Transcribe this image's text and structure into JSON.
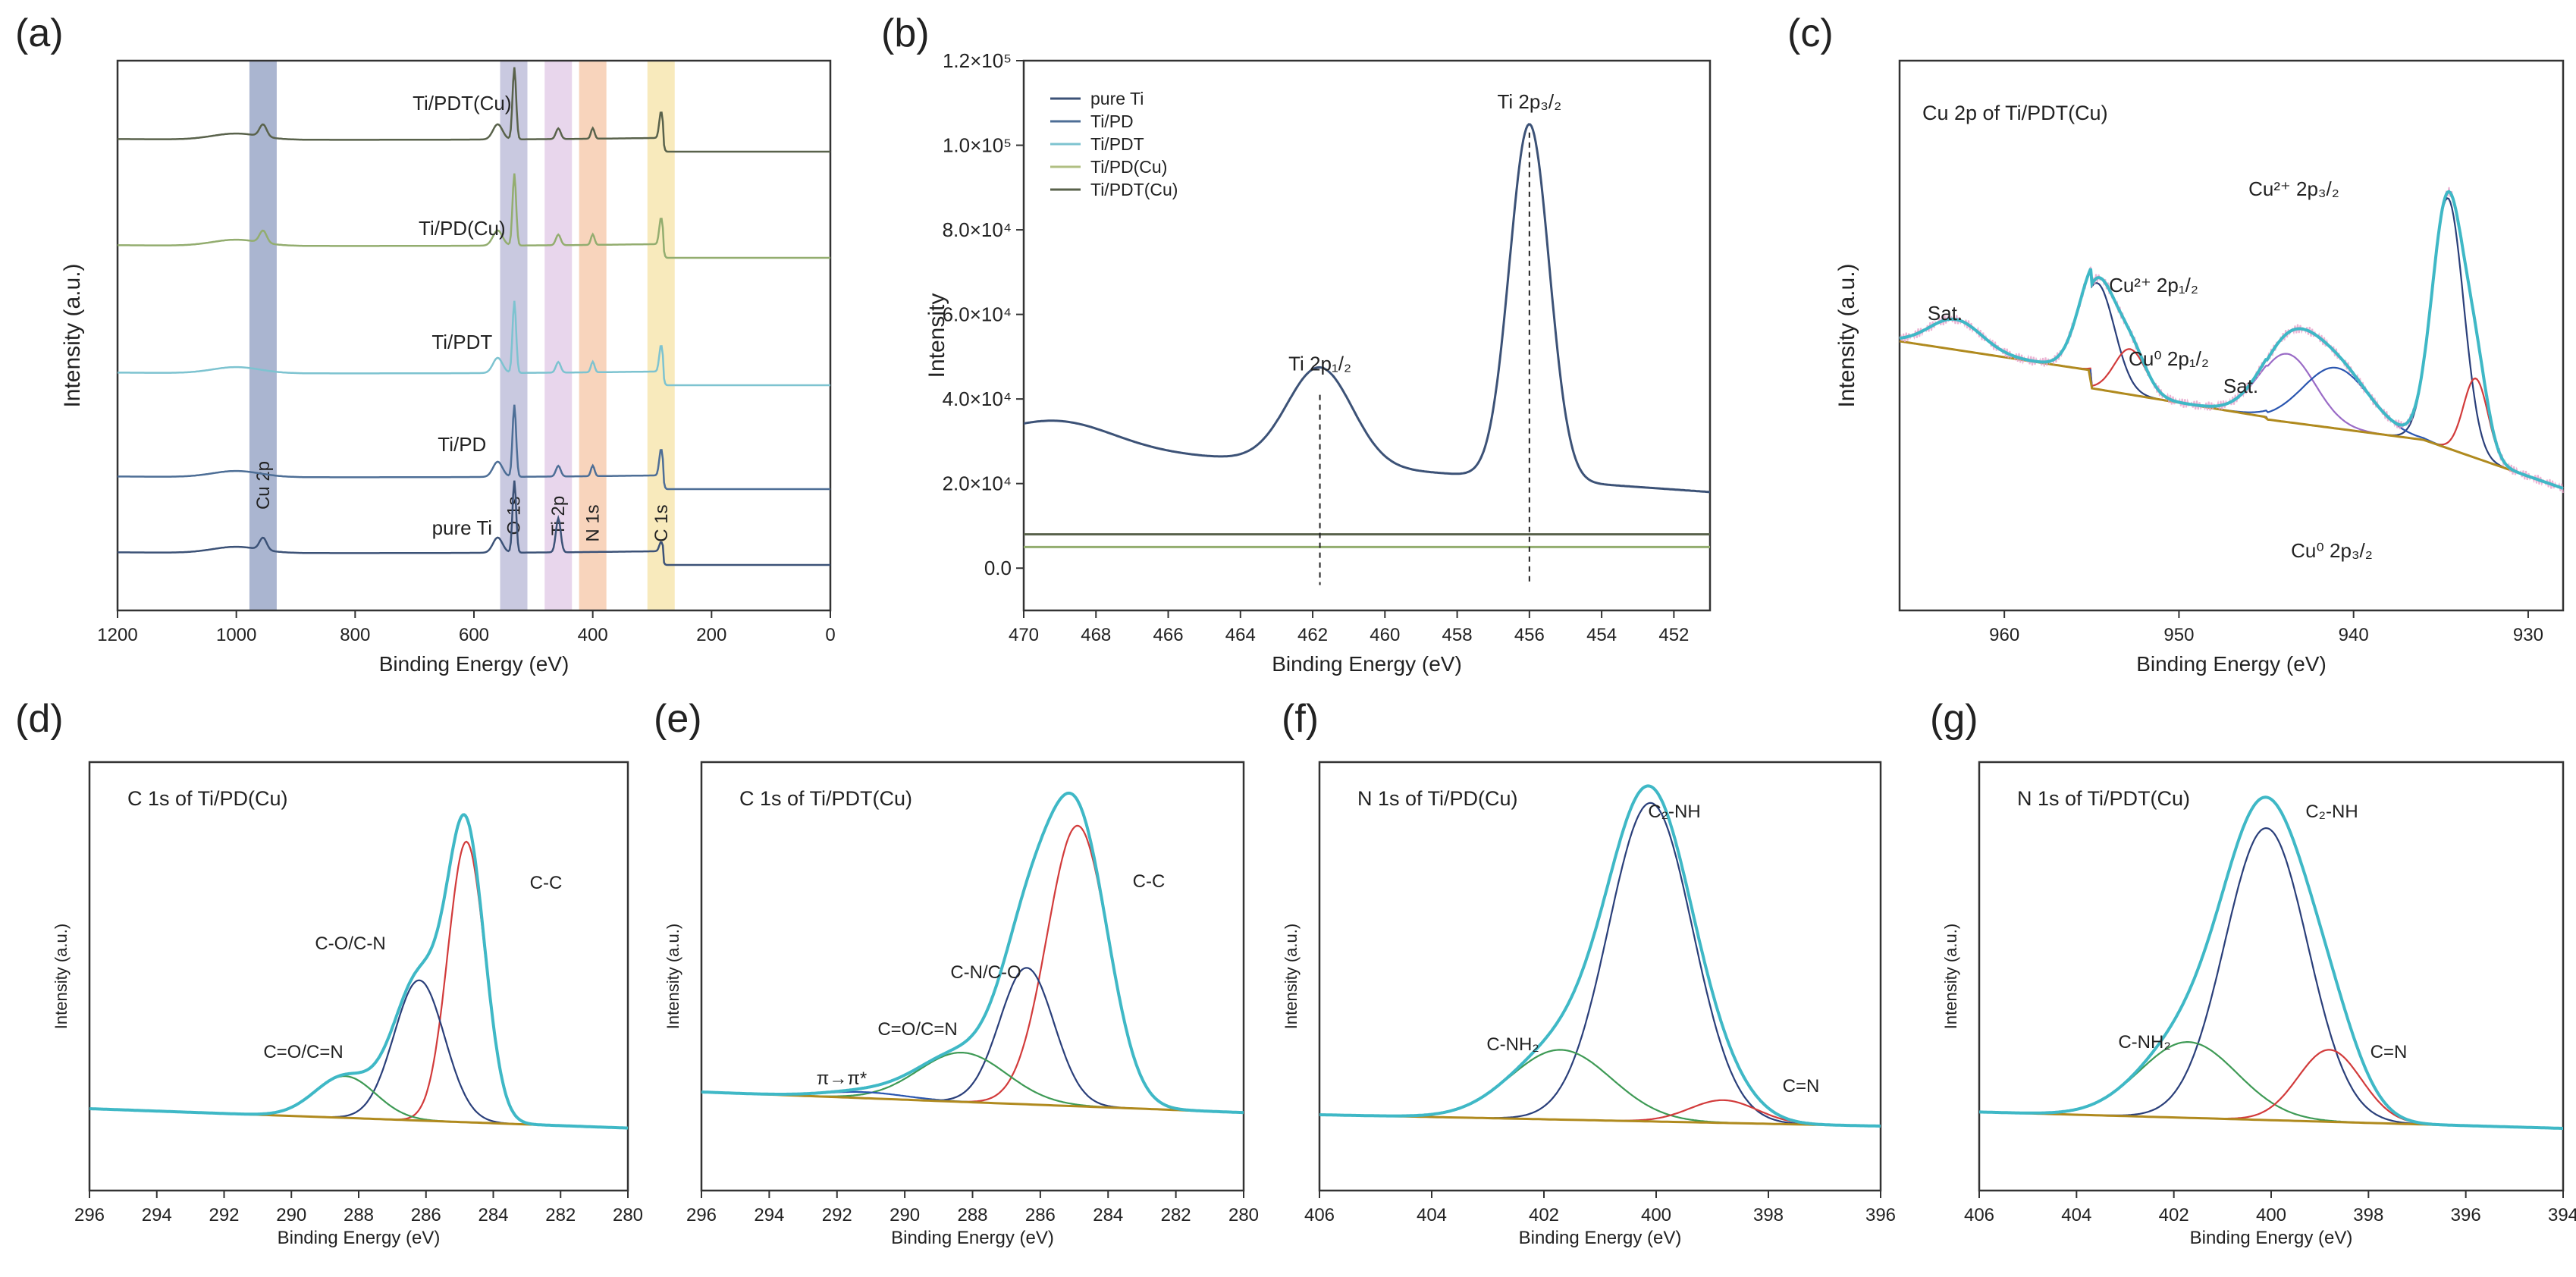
{
  "chart_data": [
    {
      "id": "a",
      "panel_label": "(a)",
      "type": "line",
      "xlabel": "Binding Energy (eV)",
      "ylabel": "Intensity (a.u.)",
      "xlim": [
        1200,
        0
      ],
      "xticks": [
        1200,
        1000,
        800,
        600,
        400,
        200,
        0
      ],
      "bands": [
        {
          "x": 955,
          "label": "Cu 2p",
          "color": "#8e9cc0"
        },
        {
          "x": 533,
          "label": "O 1s",
          "color": "#b7b7d6"
        },
        {
          "x": 458,
          "label": "Ti 2p",
          "color": "#e0c8e6"
        },
        {
          "x": 400,
          "label": "N 1s",
          "color": "#f6c6a6"
        },
        {
          "x": 285,
          "label": "C 1s",
          "color": "#f5e3a6"
        }
      ],
      "series": [
        {
          "name": "pure Ti",
          "color": "#3c5277"
        },
        {
          "name": "Ti/PD",
          "color": "#4d6e96"
        },
        {
          "name": "Ti/PDT",
          "color": "#7dc3d0"
        },
        {
          "name": "Ti/PD(Cu)",
          "color": "#93ad6f"
        },
        {
          "name": "Ti/PDT(Cu)",
          "color": "#59624b"
        }
      ]
    },
    {
      "id": "b",
      "panel_label": "(b)",
      "type": "line",
      "xlabel": "Binding Energy (eV)",
      "ylabel": "Intensity",
      "xlim": [
        470,
        451
      ],
      "ylim": [
        -10000,
        120000
      ],
      "xticks": [
        470,
        468,
        466,
        464,
        462,
        460,
        458,
        456,
        454,
        452
      ],
      "yticks": [
        {
          "v": 0,
          "label": "0.0"
        },
        {
          "v": 20000,
          "label": "2.0×10⁴"
        },
        {
          "v": 40000,
          "label": "4.0×10⁴"
        },
        {
          "v": 60000,
          "label": "6.0×10⁴"
        },
        {
          "v": 80000,
          "label": "8.0×10⁴"
        },
        {
          "v": 100000,
          "label": "1.0×10⁵"
        },
        {
          "v": 120000,
          "label": "1.2×10⁵"
        }
      ],
      "legend": [
        "pure Ti",
        "Ti/PD",
        "Ti/PDT",
        "Ti/PD(Cu)",
        "Ti/PDT(Cu)"
      ],
      "legend_colors": [
        "#3c5277",
        "#4d6e96",
        "#7dc3d0",
        "#b0bf82",
        "#59624b"
      ],
      "peaks": [
        {
          "x": 461.8,
          "y": 41000,
          "label": "Ti 2p₁/₂"
        },
        {
          "x": 456.0,
          "y": 103000,
          "label": "Ti 2p₃/₂"
        }
      ],
      "flat_lines": [
        {
          "y": 8000,
          "color": "#59624b"
        },
        {
          "y": 5000,
          "color": "#93ad6f"
        }
      ]
    },
    {
      "id": "c",
      "panel_label": "(c)",
      "type": "line",
      "title": "Cu 2p of Ti/PDT(Cu)",
      "xlabel": "Binding Energy (eV)",
      "ylabel": "Intensity (a.u.)",
      "xlim": [
        966,
        928
      ],
      "xticks": [
        960,
        950,
        940,
        930
      ],
      "annotations": [
        "Cu²⁺ 2p₃/₂",
        "Cu²⁺ 2p₁/₂",
        "Cu⁰ 2p₁/₂",
        "Cu⁰ 2p₃/₂",
        "Sat.",
        "Sat."
      ]
    },
    {
      "id": "d",
      "panel_label": "(d)",
      "type": "line",
      "title": "C 1s of Ti/PD(Cu)",
      "xlabel": "Binding Energy (eV)",
      "ylabel": "Intensity (a.u.)",
      "xlim": [
        296,
        280
      ],
      "xticks": [
        296,
        294,
        292,
        290,
        288,
        286,
        284,
        282,
        280
      ],
      "components": [
        {
          "label": "C-C",
          "center": 284.8
        },
        {
          "label": "C-O/C-N",
          "center": 286.2
        },
        {
          "label": "C=O/C=N",
          "center": 288.4
        }
      ]
    },
    {
      "id": "e",
      "panel_label": "(e)",
      "type": "line",
      "title": "C 1s of Ti/PDT(Cu)",
      "xlabel": "Binding Energy (eV)",
      "ylabel": "Intensity (a.u.)",
      "xlim": [
        296,
        280
      ],
      "xticks": [
        296,
        294,
        292,
        290,
        288,
        286,
        284,
        282,
        280
      ],
      "components": [
        {
          "label": "C-C",
          "center": 284.9
        },
        {
          "label": "C-N/C-O",
          "center": 286.4
        },
        {
          "label": "C=O/C=N",
          "center": 288.3
        },
        {
          "label": "π→π*",
          "center": 291.2
        }
      ]
    },
    {
      "id": "f",
      "panel_label": "(f)",
      "type": "line",
      "title": "N 1s of Ti/PD(Cu)",
      "xlabel": "Binding Energy (eV)",
      "ylabel": "Intensity (a.u.)",
      "xlim": [
        406,
        396
      ],
      "xticks": [
        406,
        404,
        402,
        400,
        398,
        396
      ],
      "components": [
        {
          "label": "C₂-NH",
          "center": 400.1
        },
        {
          "label": "C-NH₂",
          "center": 401.7
        },
        {
          "label": "C=N",
          "center": 398.8
        }
      ]
    },
    {
      "id": "g",
      "panel_label": "(g)",
      "type": "line",
      "title": "N 1s of Ti/PDT(Cu)",
      "xlabel": "Binding Energy (eV)",
      "ylabel": "Intensity (a.u.)",
      "xlim": [
        406,
        394
      ],
      "xticks": [
        406,
        404,
        402,
        400,
        398,
        396,
        394
      ],
      "components": [
        {
          "label": "C₂-NH",
          "center": 400.1
        },
        {
          "label": "C-NH₂",
          "center": 401.7
        },
        {
          "label": "C=N",
          "center": 398.8
        }
      ]
    }
  ]
}
